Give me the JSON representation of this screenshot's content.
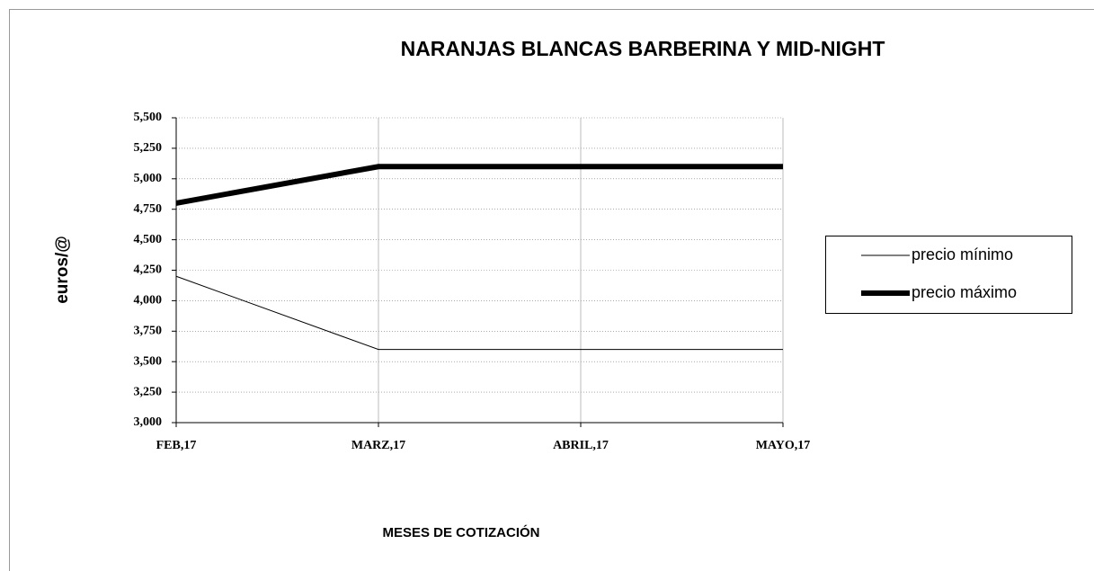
{
  "chart_data": {
    "type": "line",
    "title": "NARANJAS  BLANCAS BARBERINA Y MID-NIGHT",
    "y_label": "euros/@",
    "x_label": "MESES DE COTIZACIÓN",
    "categories": [
      "FEB,17",
      "MARZ,17",
      "ABRIL,17",
      "MAYO,17"
    ],
    "series": [
      {
        "name": "precio mínimo",
        "color": "#000000",
        "width": 1,
        "values": [
          4.2,
          3.6,
          3.6,
          3.6
        ]
      },
      {
        "name": "precio máximo",
        "color": "#000000",
        "width": 6,
        "values": [
          4.8,
          5.1,
          5.1,
          5.1
        ]
      }
    ],
    "ylim": [
      3.0,
      5.5
    ],
    "yticks": [
      {
        "value": 3.0,
        "label": "3,000"
      },
      {
        "value": 3.25,
        "label": "3,250"
      },
      {
        "value": 3.5,
        "label": "3,500"
      },
      {
        "value": 3.75,
        "label": "3,750"
      },
      {
        "value": 4.0,
        "label": "4,000"
      },
      {
        "value": 4.25,
        "label": "4,250"
      },
      {
        "value": 4.5,
        "label": "4,500"
      },
      {
        "value": 4.75,
        "label": "4,750"
      },
      {
        "value": 5.0,
        "label": "5,000"
      },
      {
        "value": 5.25,
        "label": "5,250"
      },
      {
        "value": 5.5,
        "label": "5,500"
      }
    ],
    "grid": true,
    "legend": "right"
  }
}
